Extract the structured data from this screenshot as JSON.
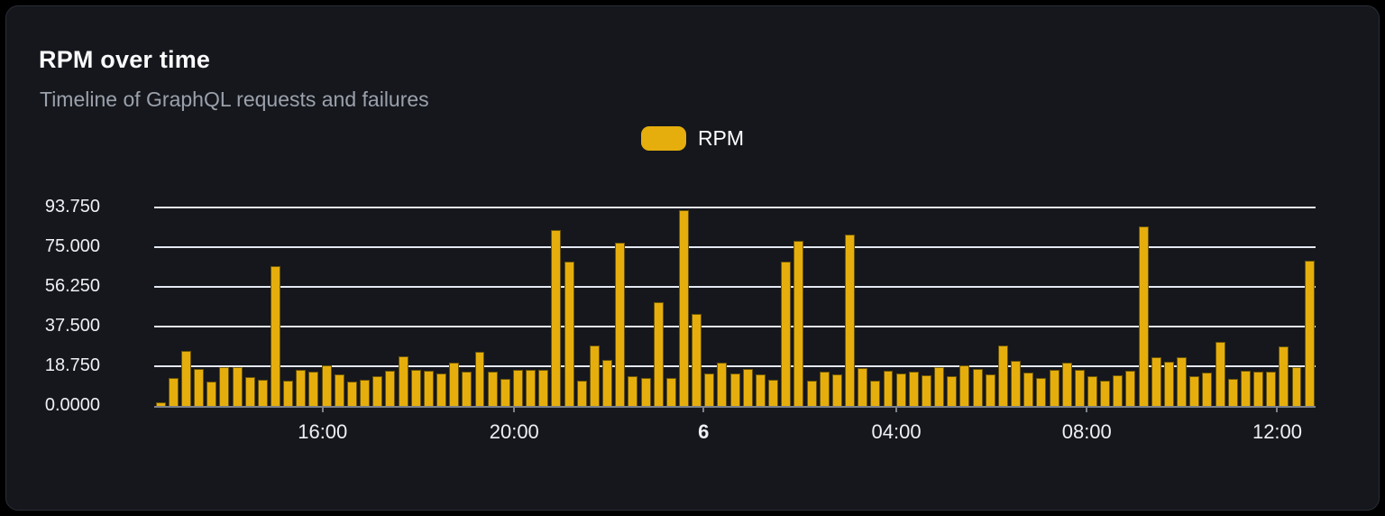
{
  "header": {
    "title": "RPM over time",
    "subtitle": "Timeline of GraphQL requests and failures"
  },
  "legend": {
    "items": [
      {
        "label": "RPM",
        "color": "#E5AE0D"
      }
    ]
  },
  "chart_data": {
    "type": "bar",
    "title": "RPM over time",
    "subtitle": "Timeline of GraphQL requests and failures",
    "ylabel": "",
    "xlabel": "",
    "ylim": [
      0,
      93.75
    ],
    "grid": "horizontal",
    "legend_position": "top-center",
    "bar_color": "#E5AE0D",
    "y_axis": {
      "ticks": [
        {
          "label": "93.750",
          "value": 93.75
        },
        {
          "label": "75.000",
          "value": 75
        },
        {
          "label": "56.250",
          "value": 56.25
        },
        {
          "label": "37.500",
          "value": 37.5
        },
        {
          "label": "18.750",
          "value": 18.75
        },
        {
          "label": "0.0000",
          "value": 0
        }
      ]
    },
    "x_axis": {
      "ticks": [
        {
          "label": "16:00",
          "pos_pct": 14.5,
          "bold": false
        },
        {
          "label": "20:00",
          "pos_pct": 31.0,
          "bold": false
        },
        {
          "label": "6",
          "pos_pct": 47.3,
          "bold": true
        },
        {
          "label": "04:00",
          "pos_pct": 63.9,
          "bold": false
        },
        {
          "label": "08:00",
          "pos_pct": 80.3,
          "bold": false
        },
        {
          "label": "12:00",
          "pos_pct": 96.7,
          "bold": false
        }
      ]
    },
    "series": [
      {
        "name": "RPM",
        "values": [
          1.5,
          13.2,
          25.8,
          17.5,
          11.5,
          18.2,
          18.2,
          13.5,
          12.5,
          66.1,
          12,
          17,
          16,
          19,
          15,
          11.7,
          12.5,
          14,
          16.5,
          23.5,
          17,
          16.8,
          15.5,
          20.4,
          16,
          25.5,
          16,
          12.9,
          16.9,
          17.2,
          17.2,
          82.9,
          68.4,
          11.9,
          28.7,
          21.8,
          77.2,
          14.1,
          13.2,
          49.1,
          13.3,
          92.4,
          43.3,
          15.3,
          20.4,
          15.5,
          17.5,
          15,
          12.2,
          68.4,
          78.2,
          11.9,
          16,
          15,
          80.9,
          17.8,
          11.8,
          16.8,
          15.3,
          16.1,
          14.6,
          18.5,
          14.2,
          19.2,
          17.5,
          14.9,
          28.7,
          21.5,
          15.8,
          13.3,
          17.2,
          20.5,
          16.9,
          14.1,
          11.9,
          14.5,
          16.6,
          84.6,
          22.9,
          21.1,
          22.9,
          14.1,
          15.9,
          30.1,
          12.9,
          16.8,
          16.1,
          16.4,
          28.1,
          18.2,
          68.6
        ]
      }
    ]
  },
  "colors": {
    "page_bg": "#000000",
    "card_bg": "#15171D",
    "card_border": "#292D36",
    "bar": "#E5AE0D",
    "bar_edge": "#6B5406",
    "grid": "#E4E8F1",
    "axis": "#7D828B",
    "title": "#FBFBFC",
    "subtitle": "#9BA1AB",
    "label": "#EEF0F4"
  }
}
